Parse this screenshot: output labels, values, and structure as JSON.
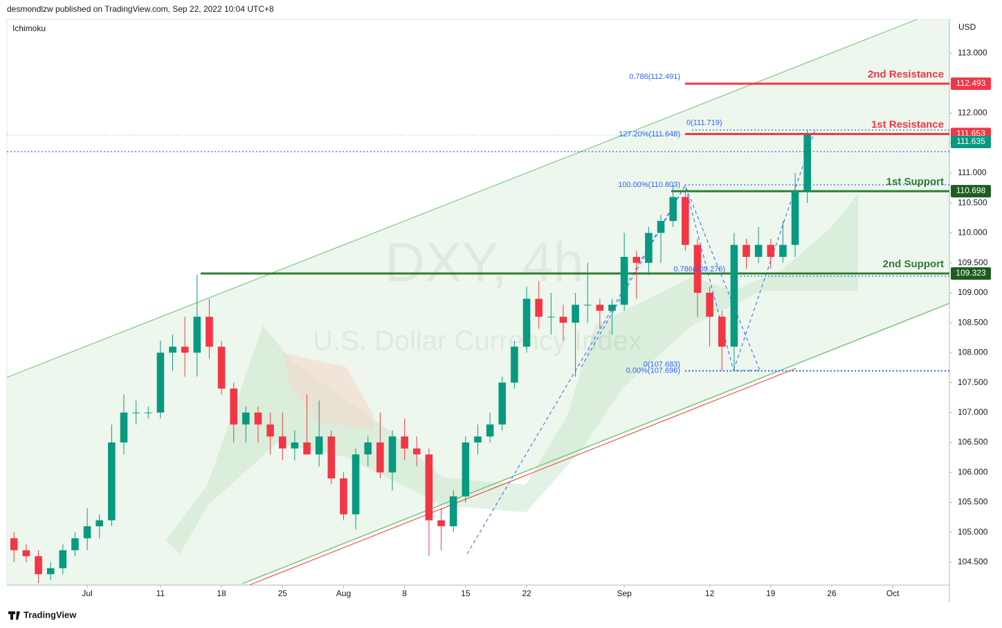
{
  "header": {
    "title": "desmondlzw published on TradingView.com, Sep 22, 2022 10:04 UTC+8",
    "indicator": "Ichimoku",
    "footer": "TradingView"
  },
  "chart_data": {
    "type": "candlestick",
    "symbol": "DXY, 4h",
    "description": "U.S. Dollar Currency Index",
    "currency": "USD",
    "x": [
      -6,
      -5,
      -4,
      -3,
      -2,
      -1,
      0,
      1,
      2,
      3,
      4,
      5,
      6,
      7,
      8,
      9,
      10,
      11,
      12,
      13,
      14,
      15,
      16,
      17,
      18,
      19,
      20,
      21,
      22,
      23,
      24,
      25,
      26,
      27,
      28,
      29,
      30,
      31,
      32,
      33,
      34,
      35,
      36,
      37,
      38,
      39,
      40,
      41,
      42,
      43,
      44,
      45,
      46,
      47,
      48,
      49,
      50,
      51,
      52,
      53,
      54,
      55,
      56,
      57,
      58,
      59
    ],
    "open": [
      104.9,
      104.7,
      104.6,
      104.3,
      104.4,
      104.7,
      104.9,
      105.1,
      105.2,
      106.5,
      107.0,
      107.0,
      107.0,
      108.0,
      108.1,
      108.0,
      108.6,
      108.1,
      107.4,
      106.8,
      107.0,
      106.8,
      106.6,
      106.4,
      106.5,
      106.3,
      106.6,
      105.9,
      105.3,
      106.3,
      106.5,
      106.0,
      106.6,
      106.4,
      106.3,
      105.2,
      105.1,
      105.6,
      106.5,
      106.6,
      106.8,
      107.5,
      108.1,
      108.9,
      108.6,
      108.6,
      108.5,
      108.8,
      108.8,
      108.7,
      108.8,
      109.6,
      109.5,
      110.0,
      110.2,
      110.6,
      109.8,
      109.0,
      108.6,
      108.1,
      109.8,
      109.6,
      109.8,
      109.6,
      109.8,
      110.7
    ],
    "high": [
      105.0,
      104.8,
      104.7,
      104.5,
      104.8,
      105.0,
      105.4,
      105.3,
      106.8,
      107.3,
      107.2,
      107.1,
      108.2,
      108.3,
      108.6,
      109.3,
      108.9,
      108.2,
      107.5,
      107.1,
      107.1,
      107.0,
      107.0,
      106.7,
      107.3,
      107.2,
      106.7,
      106.0,
      106.4,
      106.6,
      107.0,
      106.7,
      106.9,
      106.6,
      106.4,
      105.4,
      105.7,
      106.6,
      106.8,
      107.0,
      107.6,
      108.2,
      109.1,
      109.2,
      109.0,
      108.8,
      109.0,
      109.5,
      108.9,
      108.9,
      110.0,
      109.7,
      110.1,
      110.3,
      110.8,
      110.7,
      109.9,
      109.1,
      108.7,
      110.0,
      109.9,
      110.1,
      109.9,
      110.2,
      111.0,
      111.72
    ],
    "low": [
      104.5,
      104.5,
      104.15,
      104.2,
      104.3,
      104.6,
      104.7,
      104.9,
      105.1,
      106.3,
      106.8,
      106.9,
      106.9,
      107.7,
      107.6,
      107.6,
      107.9,
      107.3,
      106.5,
      106.5,
      106.5,
      106.3,
      106.2,
      106.2,
      106.3,
      106.1,
      105.8,
      105.2,
      105.05,
      106.1,
      105.9,
      105.7,
      106.2,
      106.1,
      104.6,
      104.7,
      105.0,
      105.5,
      106.3,
      106.5,
      106.7,
      107.4,
      108.0,
      108.4,
      108.3,
      108.2,
      107.6,
      108.5,
      108.4,
      108.3,
      108.7,
      108.9,
      109.3,
      109.5,
      110.1,
      109.7,
      108.6,
      108.1,
      107.7,
      107.7,
      109.4,
      109.5,
      109.4,
      109.5,
      109.6,
      110.5
    ],
    "close": [
      104.7,
      104.6,
      104.3,
      104.4,
      104.7,
      104.9,
      105.1,
      105.2,
      106.5,
      107.0,
      107.0,
      107.0,
      108.0,
      108.1,
      108.0,
      108.6,
      108.1,
      107.4,
      106.8,
      107.0,
      106.8,
      106.6,
      106.4,
      106.5,
      106.3,
      106.6,
      105.9,
      105.3,
      106.3,
      106.5,
      106.0,
      106.6,
      106.4,
      106.3,
      105.2,
      105.1,
      105.6,
      106.5,
      106.6,
      106.8,
      107.5,
      108.1,
      108.9,
      108.6,
      108.6,
      108.5,
      108.8,
      108.8,
      108.7,
      108.8,
      109.6,
      109.5,
      110.0,
      110.2,
      110.6,
      109.8,
      109.0,
      108.6,
      108.1,
      109.8,
      109.6,
      109.8,
      109.6,
      109.8,
      110.7,
      111.635
    ],
    "up_color": "#089981",
    "down_color": "#f23645",
    "xlim": [
      -6.58,
      70.64
    ],
    "xticks": [
      {
        "value": 0,
        "label": "Jul"
      },
      {
        "value": 6,
        "label": "11"
      },
      {
        "value": 11,
        "label": "18"
      },
      {
        "value": 16,
        "label": "25"
      },
      {
        "value": 21,
        "label": "Aug"
      },
      {
        "value": 26,
        "label": "8"
      },
      {
        "value": 31,
        "label": "15"
      },
      {
        "value": 36,
        "label": "22"
      },
      {
        "value": 44,
        "label": "Sep"
      },
      {
        "value": 51,
        "label": "12"
      },
      {
        "value": 56,
        "label": "19"
      },
      {
        "value": 61,
        "label": "26"
      },
      {
        "value": 66,
        "label": "Oct"
      }
    ],
    "ylim": [
      104.118,
      113.567
    ],
    "yticks": [
      {
        "value": 104.5,
        "label": "104.500"
      },
      {
        "value": 105,
        "label": "105.000"
      },
      {
        "value": 105.5,
        "label": "105.500"
      },
      {
        "value": 106,
        "label": "106.000"
      },
      {
        "value": 106.5,
        "label": "106.500"
      },
      {
        "value": 107,
        "label": "107.000"
      },
      {
        "value": 107.5,
        "label": "107.500"
      },
      {
        "value": 108,
        "label": "108.000"
      },
      {
        "value": 108.5,
        "label": "108.500"
      },
      {
        "value": 109,
        "label": "109.000"
      },
      {
        "value": 109.5,
        "label": "109.500"
      },
      {
        "value": 110,
        "label": "110.000"
      },
      {
        "value": 110.5,
        "label": "110.500"
      },
      {
        "value": 111,
        "label": "111.000"
      },
      {
        "value": 111.5,
        "label": "111.500"
      },
      {
        "value": 112,
        "label": "112.000"
      },
      {
        "value": 112.5,
        "label": "112.500"
      },
      {
        "value": 113,
        "label": "113.000"
      }
    ],
    "grid": false,
    "levels": [
      {
        "name": "2nd Resistance",
        "value": 112.493,
        "color": "#f23645"
      },
      {
        "name": "1st Resistance",
        "value": 111.653,
        "color": "#f23645"
      },
      {
        "name": "1st Support",
        "value": 110.698,
        "color": "#2e7d32"
      },
      {
        "name": "2nd Support",
        "value": 109.323,
        "color": "#2e7d32"
      }
    ],
    "last_price": 111.635,
    "fib_labels": [
      {
        "label": "0.786(112.491)",
        "value": 112.491
      },
      {
        "label": "127.20%(111.648)",
        "value": 111.648
      },
      {
        "label": "0(111.719)",
        "value": 111.719
      },
      {
        "label": "100.00%(110.803)",
        "value": 110.803
      },
      {
        "label": "0.786(109.276)",
        "value": 109.276
      },
      {
        "label": "0(107.683)",
        "value": 107.683
      },
      {
        "label": "0.00%(107.696)",
        "value": 107.696
      }
    ],
    "dotted_lines": [
      111.719,
      111.358,
      110.803,
      109.276,
      107.696
    ]
  }
}
